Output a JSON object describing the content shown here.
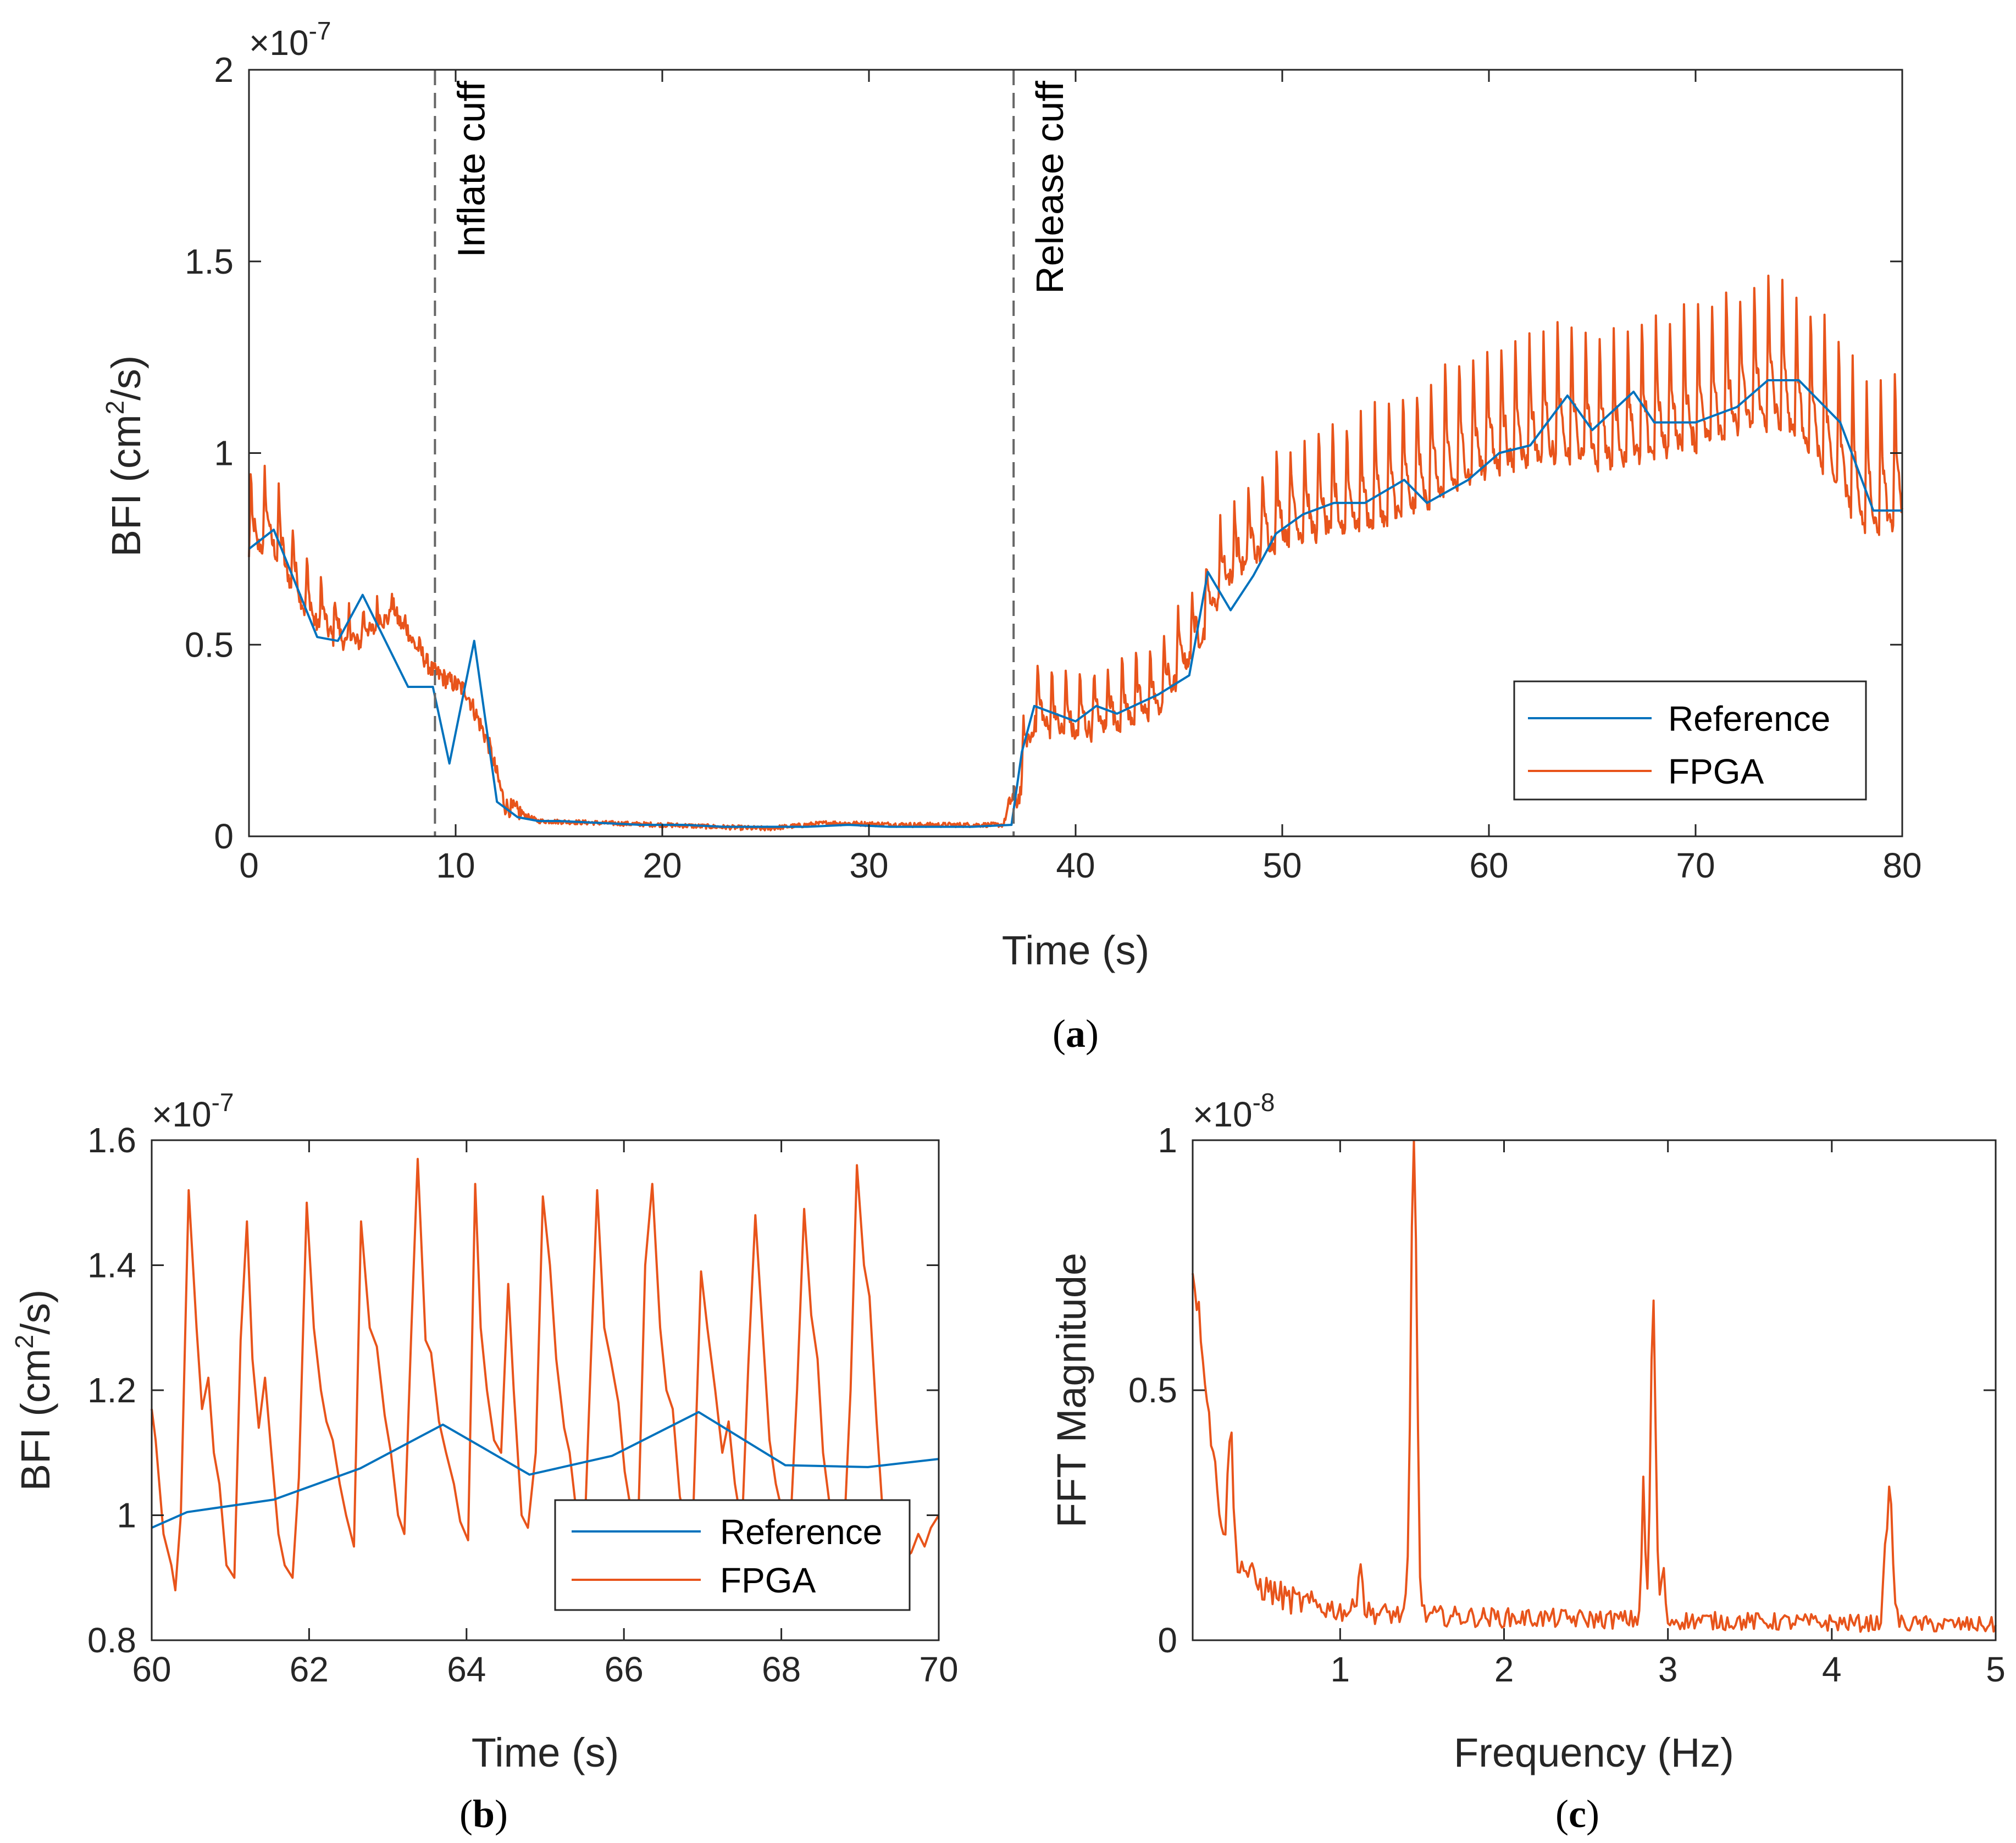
{
  "colors": {
    "reference": "#0072BD",
    "fpga": "#E8541B",
    "axes": "#262626",
    "dashed": "#666666"
  },
  "chart_data": [
    {
      "id": "a",
      "type": "line",
      "caption": "a",
      "xlabel": "Time (s)",
      "ylabel_main": "BFI (cm",
      "ylabel_sup": "2",
      "ylabel_tail": "/s)",
      "xlim": [
        0,
        80
      ],
      "ylim": [
        0,
        2
      ],
      "x_ticks": [
        0,
        10,
        20,
        30,
        40,
        50,
        60,
        70,
        80
      ],
      "x_tick_labels": [
        "0",
        "10",
        "20",
        "30",
        "40",
        "50",
        "60",
        "70",
        "80"
      ],
      "y_ticks": [
        0,
        0.5,
        1,
        1.5,
        2
      ],
      "y_tick_labels": [
        "0",
        "0.5",
        "1",
        "1.5",
        "2"
      ],
      "y_exponent_base": "×10",
      "y_exponent_power": "-7",
      "legend": {
        "position": "bottom-right",
        "entries": [
          "Reference",
          "FPGA"
        ]
      },
      "annotations": [
        {
          "x": 9,
          "text": "Inflate cuff"
        },
        {
          "x": 37,
          "text": "Release cuff"
        }
      ],
      "series": [
        {
          "name": "Reference",
          "x": [
            0,
            1.2,
            3.3,
            4.3,
            5.5,
            7.7,
            8.9,
            9.7,
            10.9,
            12,
            13,
            14,
            15,
            17,
            19,
            21,
            23,
            25,
            27,
            29,
            31,
            33,
            35,
            36.9,
            37.4,
            38,
            40,
            41,
            42,
            44,
            45.5,
            46.4,
            47.5,
            48.6,
            49.7,
            51,
            52.5,
            54,
            55.9,
            57,
            59,
            60.5,
            62,
            63.8,
            65,
            66,
            67,
            68,
            70,
            72,
            73.5,
            75,
            77,
            78.6,
            80
          ],
          "values": [
            0.75,
            0.8,
            0.52,
            0.51,
            0.63,
            0.39,
            0.39,
            0.19,
            0.51,
            0.09,
            0.05,
            0.04,
            0.04,
            0.035,
            0.03,
            0.03,
            0.025,
            0.025,
            0.025,
            0.03,
            0.025,
            0.025,
            0.025,
            0.03,
            0.22,
            0.34,
            0.3,
            0.34,
            0.32,
            0.37,
            0.42,
            0.69,
            0.59,
            0.68,
            0.79,
            0.84,
            0.87,
            0.87,
            0.93,
            0.87,
            0.93,
            1.0,
            1.02,
            1.15,
            1.06,
            1.11,
            1.16,
            1.08,
            1.08,
            1.12,
            1.19,
            1.19,
            1.08,
            0.85,
            0.85
          ]
        },
        {
          "name": "FPGA",
          "generator": "pulsatile",
          "x": [
            0,
            1,
            3,
            5,
            7,
            8.9,
            10.5,
            11.6,
            12.4,
            14,
            20,
            25,
            28,
            32,
            36.5,
            37.2,
            38,
            40,
            44,
            46,
            47.2,
            50,
            55,
            60,
            63.5,
            66,
            70,
            73.8,
            76,
            78.5,
            80
          ],
          "values": [
            0.82,
            0.85,
            0.62,
            0.53,
            0.6,
            0.43,
            0.38,
            0.24,
            0.08,
            0.04,
            0.03,
            0.02,
            0.035,
            0.03,
            0.03,
            0.15,
            0.36,
            0.33,
            0.4,
            0.58,
            0.74,
            0.88,
            0.95,
            1.1,
            1.14,
            1.12,
            1.18,
            1.25,
            1.15,
            0.95,
            1.0
          ],
          "pulse_period_s": 0.68,
          "pulse_amplitude": [
            0.22,
            0.0,
            0.0,
            0.0,
            0.16,
            0.18,
            0.32,
            0.4
          ]
        }
      ]
    },
    {
      "id": "b",
      "type": "line",
      "caption": "b",
      "xlabel": "Time (s)",
      "ylabel_main": "BFI (cm",
      "ylabel_sup": "2",
      "ylabel_tail": "/s)",
      "xlim": [
        60,
        70
      ],
      "ylim": [
        0.8,
        1.6
      ],
      "x_ticks": [
        60,
        62,
        64,
        66,
        68,
        70
      ],
      "x_tick_labels": [
        "60",
        "62",
        "64",
        "66",
        "68",
        "70"
      ],
      "y_ticks": [
        0.8,
        1,
        1.2,
        1.4,
        1.6
      ],
      "y_tick_labels": [
        "0.8",
        "1",
        "1.2",
        "1.4",
        "1.6"
      ],
      "y_exponent_base": "×10",
      "y_exponent_power": "-7",
      "legend": {
        "position": "bottom-right",
        "entries": [
          "Reference",
          "FPGA"
        ]
      },
      "series": [
        {
          "name": "Reference",
          "x": [
            60,
            60.45,
            61.55,
            62.65,
            63.7,
            64.8,
            65.85,
            66.95,
            68.05,
            69.1,
            70
          ],
          "values": [
            0.98,
            1.005,
            1.025,
            1.075,
            1.145,
            1.065,
            1.095,
            1.165,
            1.08,
            1.077,
            1.09
          ]
        },
        {
          "name": "FPGA",
          "x": [
            60.0,
            60.05,
            60.15,
            60.25,
            60.3,
            60.37,
            60.47,
            60.57,
            60.64,
            60.72,
            60.79,
            60.86,
            60.95,
            61.05,
            61.13,
            61.21,
            61.28,
            61.36,
            61.44,
            61.52,
            61.61,
            61.69,
            61.79,
            61.87,
            61.97,
            62.06,
            62.15,
            62.22,
            62.3,
            62.39,
            62.47,
            62.57,
            62.66,
            62.77,
            62.86,
            62.96,
            63.04,
            63.13,
            63.21,
            63.3,
            63.38,
            63.48,
            63.55,
            63.65,
            63.74,
            63.84,
            63.92,
            64.02,
            64.11,
            64.18,
            64.26,
            64.35,
            64.44,
            64.53,
            64.6,
            64.7,
            64.78,
            64.88,
            64.97,
            65.06,
            65.14,
            65.24,
            65.31,
            65.4,
            65.5,
            65.58,
            65.66,
            65.75,
            65.83,
            65.93,
            66.01,
            66.1,
            66.18,
            66.27,
            66.36,
            66.46,
            66.54,
            66.62,
            66.71,
            66.8,
            66.88,
            66.98,
            67.06,
            67.16,
            67.25,
            67.33,
            67.41,
            67.5,
            67.58,
            67.67,
            67.76,
            67.85,
            67.93,
            68.02,
            68.11,
            68.2,
            68.29,
            68.38,
            68.46,
            68.53,
            68.61,
            68.7,
            68.79,
            68.88,
            68.96,
            69.05,
            69.12,
            69.21,
            69.29,
            69.38,
            69.45,
            69.56,
            69.65,
            69.74,
            69.82,
            69.9,
            70.0
          ],
          "values": [
            1.17,
            1.12,
            0.97,
            0.92,
            0.88,
            1.0,
            1.52,
            1.3,
            1.17,
            1.22,
            1.1,
            1.05,
            0.92,
            0.9,
            1.28,
            1.47,
            1.25,
            1.14,
            1.22,
            1.1,
            0.97,
            0.92,
            0.9,
            1.06,
            1.5,
            1.3,
            1.2,
            1.15,
            1.12,
            1.05,
            1.0,
            0.95,
            1.47,
            1.3,
            1.27,
            1.16,
            1.1,
            1.0,
            0.97,
            1.3,
            1.57,
            1.28,
            1.26,
            1.15,
            1.1,
            1.05,
            0.99,
            0.96,
            1.53,
            1.3,
            1.2,
            1.12,
            1.1,
            1.37,
            1.2,
            1.0,
            0.98,
            1.1,
            1.51,
            1.4,
            1.25,
            1.14,
            1.1,
            1.0,
            0.97,
            1.25,
            1.52,
            1.3,
            1.25,
            1.18,
            1.07,
            1.0,
            0.98,
            1.4,
            1.53,
            1.3,
            1.2,
            1.17,
            1.03,
            0.98,
            1.0,
            1.39,
            1.3,
            1.2,
            1.1,
            1.15,
            1.05,
            0.98,
            1.24,
            1.48,
            1.3,
            1.12,
            1.05,
            1.0,
            0.97,
            1.2,
            1.49,
            1.32,
            1.25,
            1.1,
            1.02,
            1.0,
            0.95,
            1.2,
            1.56,
            1.4,
            1.35,
            1.15,
            1.0,
            0.97,
            0.96,
            0.93,
            0.94,
            0.97,
            0.95,
            0.98,
            1.0
          ]
        }
      ]
    },
    {
      "id": "c",
      "type": "line",
      "caption": "c",
      "xlabel": "Frequency (Hz)",
      "ylabel_main": "FFT Magnitude",
      "xlim": [
        0.1,
        5
      ],
      "ylim": [
        0,
        1
      ],
      "x_ticks": [
        1,
        2,
        3,
        4,
        5
      ],
      "x_tick_labels": [
        "1",
        "2",
        "3",
        "4",
        "5"
      ],
      "y_ticks": [
        0,
        0.5,
        1
      ],
      "y_tick_labels": [
        "0",
        "0.5",
        "1"
      ],
      "y_exponent_base": "×10",
      "y_exponent_power": "-8",
      "series": [
        {
          "name": "FPGA",
          "generator": "spectrum",
          "baseline": [
            [
              0.1,
              0.75
            ],
            [
              0.15,
              0.62
            ],
            [
              0.2,
              0.45
            ],
            [
              0.25,
              0.3
            ],
            [
              0.3,
              0.2
            ],
            [
              0.4,
              0.15
            ],
            [
              0.5,
              0.11
            ],
            [
              0.7,
              0.08
            ],
            [
              1.0,
              0.06
            ],
            [
              1.4,
              0.05
            ],
            [
              2.0,
              0.045
            ],
            [
              3.0,
              0.04
            ],
            [
              4.0,
              0.035
            ],
            [
              5.0,
              0.03
            ]
          ],
          "peaks": [
            [
              1.45,
              0.98,
              0.025
            ],
            [
              2.91,
              0.63,
              0.022
            ],
            [
              2.85,
              0.26,
              0.015
            ],
            [
              4.35,
              0.26,
              0.03
            ],
            [
              0.33,
              0.25,
              0.02
            ],
            [
              1.12,
              0.11,
              0.02
            ],
            [
              2.97,
              0.13,
              0.012
            ]
          ]
        }
      ]
    }
  ]
}
